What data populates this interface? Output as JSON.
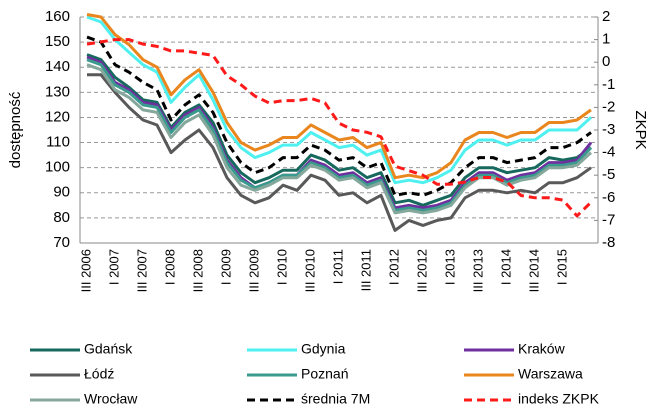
{
  "chart_data": {
    "type": "line",
    "ylabel": "dostępność",
    "y2label": "ZKPK",
    "categories": [
      "III 2006",
      null,
      "I 2007",
      null,
      "III 2007",
      null,
      "I 2008",
      null,
      "III 2008",
      null,
      "I 2009",
      null,
      "III 2009",
      null,
      "I 2010",
      null,
      "III 2010",
      null,
      "I 2011",
      null,
      "III 2011",
      null,
      "I 2012",
      null,
      "III 2012",
      null,
      "I 2013",
      null,
      "III 2013",
      null,
      "I 2014",
      null,
      "III 2014",
      null,
      "I 2015",
      null,
      null
    ],
    "ylim": [
      70,
      160
    ],
    "yticks": [
      70,
      80,
      90,
      100,
      110,
      120,
      130,
      140,
      150,
      160
    ],
    "y2lim": [
      -8,
      2
    ],
    "y2ticks": [
      -8,
      -7,
      -6,
      -5,
      -4,
      -3,
      -2,
      -1,
      0,
      1,
      2
    ],
    "grid": true,
    "series": [
      {
        "name": "Gdańsk",
        "color": "#17695e",
        "linestyle": "solid",
        "values": [
          145,
          143,
          136,
          132,
          127,
          126,
          116,
          122,
          125,
          118,
          105,
          98,
          94,
          96,
          99,
          99,
          105,
          103,
          99,
          100,
          96,
          98,
          86,
          87,
          85,
          87,
          89,
          96,
          100,
          100,
          98,
          99,
          100,
          104,
          103,
          104,
          108
        ]
      },
      {
        "name": "Gdynia",
        "color": "#4ef0f0",
        "linestyle": "solid",
        "values": [
          160,
          158,
          151,
          146,
          141,
          138,
          126,
          132,
          137,
          127,
          115,
          108,
          104,
          106,
          109,
          109,
          114,
          111,
          108,
          109,
          105,
          107,
          94,
          95,
          94,
          96,
          99,
          107,
          111,
          111,
          109,
          111,
          111,
          115,
          115,
          115,
          120
        ]
      },
      {
        "name": "Kraków",
        "color": "#6f2f9f",
        "linestyle": "solid",
        "values": [
          144,
          142,
          134,
          131,
          126,
          125,
          115,
          121,
          124,
          116,
          103,
          96,
          92,
          94,
          97,
          97,
          103,
          101,
          97,
          98,
          94,
          96,
          84,
          85,
          84,
          85,
          87,
          94,
          98,
          98,
          95,
          97,
          98,
          102,
          102,
          103,
          110
        ]
      },
      {
        "name": "Łódź",
        "color": "#595959",
        "linestyle": "solid",
        "values": [
          137,
          137,
          130,
          124,
          119,
          117,
          106,
          111,
          115,
          108,
          96,
          89,
          86,
          88,
          93,
          91,
          97,
          95,
          89,
          90,
          86,
          89,
          75,
          79,
          77,
          79,
          80,
          88,
          91,
          91,
          90,
          91,
          90,
          94,
          94,
          96,
          100
        ]
      },
      {
        "name": "Poznań",
        "color": "#3a9a8e",
        "linestyle": "solid",
        "values": [
          143,
          141,
          133,
          130,
          125,
          124,
          114,
          120,
          123,
          115,
          102,
          95,
          92,
          94,
          97,
          97,
          102,
          100,
          96,
          97,
          93,
          95,
          83,
          84,
          83,
          84,
          86,
          93,
          97,
          97,
          94,
          96,
          97,
          101,
          101,
          102,
          108
        ]
      },
      {
        "name": "Warszawa",
        "color": "#e9861e",
        "linestyle": "solid",
        "values": [
          161,
          160,
          153,
          149,
          143,
          140,
          129,
          135,
          139,
          130,
          118,
          110,
          107,
          109,
          112,
          112,
          117,
          114,
          111,
          112,
          108,
          110,
          96,
          97,
          96,
          98,
          102,
          111,
          114,
          114,
          112,
          114,
          114,
          118,
          118,
          119,
          123
        ]
      },
      {
        "name": "Wrocław",
        "color": "#86a89c",
        "linestyle": "solid",
        "values": [
          141,
          139,
          131,
          128,
          123,
          122,
          112,
          118,
          121,
          113,
          100,
          93,
          91,
          93,
          96,
          96,
          101,
          99,
          95,
          96,
          92,
          94,
          82,
          83,
          82,
          83,
          85,
          92,
          96,
          96,
          93,
          95,
          96,
          100,
          100,
          101,
          106
        ]
      },
      {
        "name": "średnia 7M",
        "color": "#000000",
        "linestyle": "dashed",
        "values": [
          152,
          150,
          141,
          138,
          134,
          131,
          119,
          125,
          129,
          122,
          110,
          102,
          98,
          100,
          104,
          104,
          109,
          107,
          103,
          104,
          100,
          102,
          89,
          90,
          89,
          91,
          94,
          100,
          104,
          104,
          102,
          103,
          104,
          108,
          108,
          110,
          114
        ]
      },
      {
        "name": "indeks ZKPK",
        "color": "#ff1a1a",
        "linestyle": "dashed",
        "axis": "y2",
        "values": [
          0.8,
          0.9,
          1.0,
          1.0,
          0.8,
          0.7,
          0.5,
          0.5,
          0.4,
          0.3,
          -0.6,
          -1.0,
          -1.5,
          -1.8,
          -1.7,
          -1.7,
          -1.6,
          -1.8,
          -2.7,
          -3.0,
          -3.1,
          -3.3,
          -4.6,
          -4.8,
          -5.0,
          -5.4,
          -5.4,
          -5.3,
          -5.1,
          -5.1,
          -5.3,
          -5.9,
          -6.0,
          -6.0,
          -6.1,
          -6.8,
          -6.2
        ]
      }
    ]
  }
}
